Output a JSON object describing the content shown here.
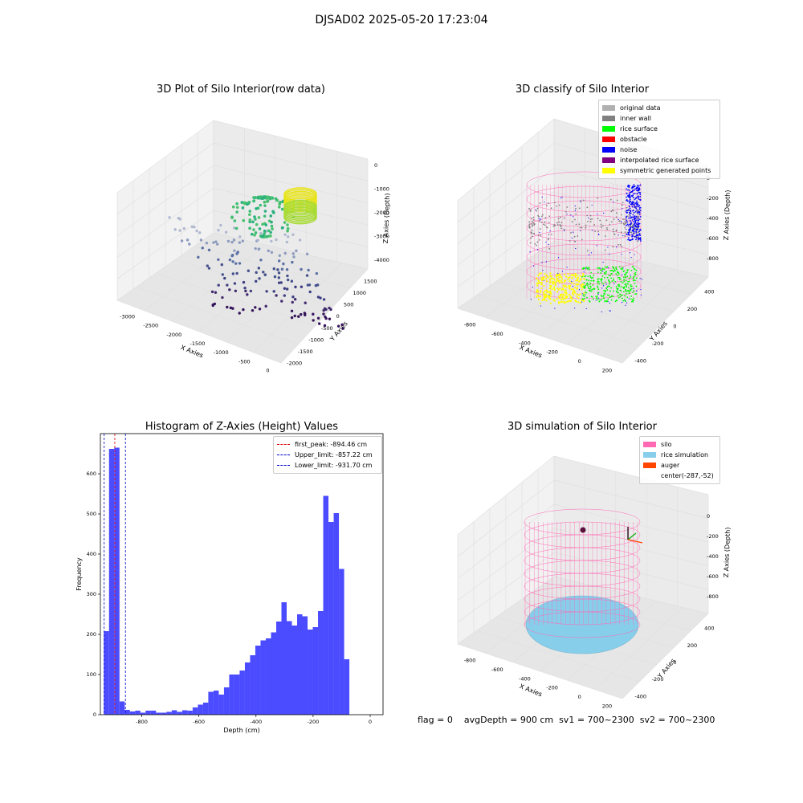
{
  "suptitle": "DJSAD02 2025-05-20 17:23:04",
  "colors": {
    "hist_bar": "#4b4bff",
    "first_peak": "#e00000",
    "limit_line": "#0000cc",
    "silo": "#ff69b4",
    "rice_sim": "#87ceeb",
    "auger": "#ff4500",
    "original": "#b0b0b0",
    "inner_wall": "#808080",
    "rice_surface": "#00ff00",
    "obstacle": "#ff0000",
    "noise": "#0000ff",
    "interp": "#800080",
    "symmetric": "#ffff00"
  },
  "chart_data": [
    {
      "type": "scatter3d",
      "title": "3D Plot of Silo Interior(row data)",
      "xlabel": "X Axies",
      "ylabel": "Y Axies",
      "zlabel": "Z Axies (Depth)",
      "x_ticks": [
        "-3000",
        "-2500",
        "-2000",
        "-1500",
        "-1000",
        "-500",
        "0"
      ],
      "y_ticks": [
        "-2000",
        "-1500",
        "-1000",
        "-500",
        "0",
        "500",
        "1000",
        "1500"
      ],
      "z_ticks": [
        "0",
        "-1000",
        "-2000",
        "-3000",
        "-4000"
      ],
      "xlim": [
        -3300,
        300
      ],
      "ylim": [
        -2200,
        1700
      ],
      "zlim": [
        -4700,
        300
      ]
    },
    {
      "type": "scatter3d",
      "title": "3D classify of Silo Interior",
      "xlabel": "X Axies",
      "ylabel": "Y Axies",
      "zlabel": "Z Axies (Depth)",
      "x_ticks": [
        "-800",
        "-600",
        "-400",
        "-200",
        "0",
        "200"
      ],
      "y_ticks": [
        "-400",
        "-200",
        "0",
        "200",
        "400"
      ],
      "z_ticks": [
        "0",
        "-200",
        "-400",
        "-600",
        "-800"
      ],
      "legend": [
        "original data",
        "inner wall",
        "rice surface",
        "obstacle",
        "noise",
        "interpolated rice surface",
        "symmetric generated points"
      ],
      "legend_position": "upper right"
    },
    {
      "type": "bar",
      "title": "Histogram of Z-Axies (Height) Values",
      "xlabel": "Depth (cm)",
      "ylabel": "Frequency",
      "xlim": [
        -945,
        45
      ],
      "ylim": [
        0,
        700
      ],
      "x_ticks": [
        -800,
        -600,
        -400,
        -200,
        0
      ],
      "y_ticks": [
        0,
        100,
        200,
        300,
        400,
        500,
        600
      ],
      "bin_start": -933,
      "bin_width": 18.3,
      "values": [
        208,
        662,
        665,
        33,
        12,
        8,
        10,
        5,
        10,
        10,
        5,
        5,
        7,
        11,
        7,
        11,
        10,
        18,
        25,
        30,
        57,
        60,
        50,
        68,
        100,
        100,
        110,
        130,
        148,
        172,
        185,
        190,
        205,
        232,
        280,
        233,
        222,
        250,
        245,
        212,
        218,
        258,
        545,
        480,
        502,
        363,
        138
      ],
      "lines": [
        {
          "label": "first_peak: -894.46 cm",
          "x": -894.46
        },
        {
          "label": "Upper_limit: -857.22 cm",
          "x": -857.22
        },
        {
          "label": "Lower_limit: -931.70 cm",
          "x": -931.7
        }
      ],
      "legend_position": "upper right"
    },
    {
      "type": "scatter3d",
      "title": "3D simulation of Silo Interior",
      "xlabel": "X Axies",
      "ylabel": "Y Axies",
      "zlabel": "Z Axies (Depth)",
      "x_ticks": [
        "-800",
        "-600",
        "-400",
        "-200",
        "0",
        "200"
      ],
      "y_ticks": [
        "-400",
        "-200",
        "0",
        "200",
        "400"
      ],
      "z_ticks": [
        "0",
        "-200",
        "-400",
        "-600",
        "-800"
      ],
      "legend": [
        "silo",
        "rice simulation",
        "auger",
        "center(-287,-52)"
      ],
      "legend_position": "upper right"
    }
  ],
  "status": {
    "flag": "flag = 0",
    "avg_depth": "avgDepth = 900 cm",
    "sv1": "sv1 = 700~2300",
    "sv2": "sv2 = 700~2300"
  }
}
